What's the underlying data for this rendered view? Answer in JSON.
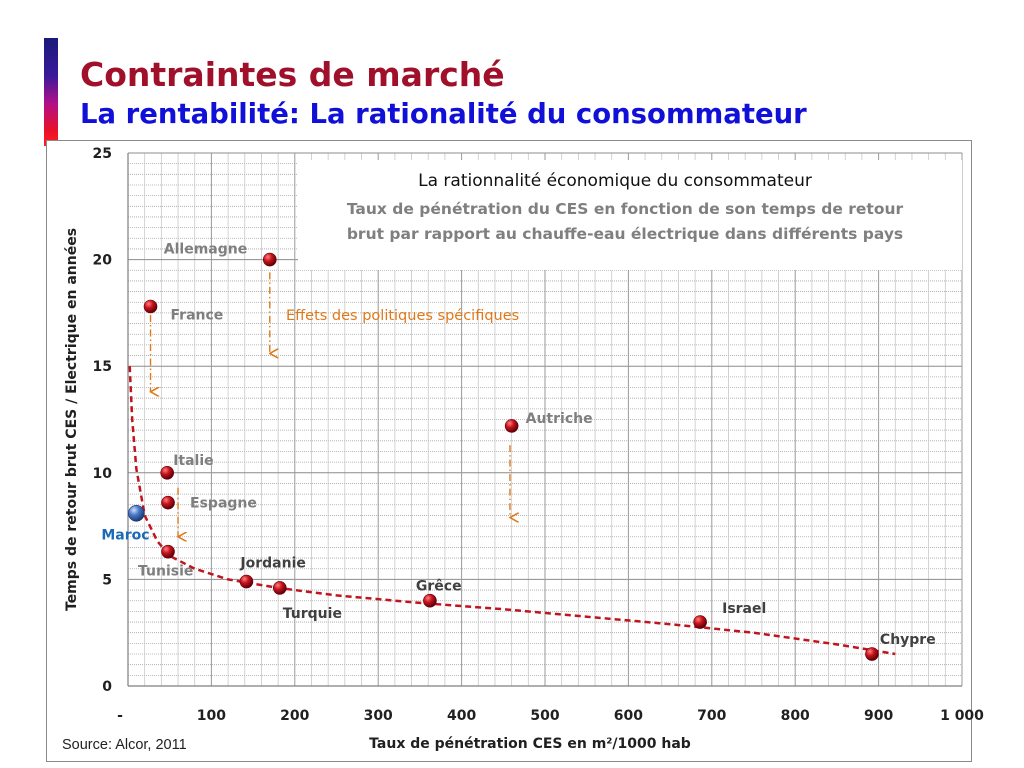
{
  "slide": {
    "title": "Contraintes de marché",
    "subtitle": "La rentabilité: La rationalité du consommateur",
    "source": "Source: Alcor, 2011"
  },
  "chart_data": {
    "type": "scatter",
    "title": "La rationnalité économique du consommateur",
    "subtitle_lines": [
      "Taux de pénétration  du CES en fonction de son temps de retour",
      "brut par rapport au chauffe-eau électrique dans différents pays"
    ],
    "xlabel": "Taux de pénétration CES en m²/1000 hab",
    "ylabel": "Temps de retour brut CES / Electrique en années",
    "xlim": [
      0,
      1000
    ],
    "ylim": [
      0,
      25
    ],
    "x_ticks": [
      0,
      100,
      200,
      300,
      400,
      500,
      600,
      700,
      800,
      900,
      1000
    ],
    "x_tick_labels": [
      "-",
      "100",
      "200",
      "300",
      "400",
      "500",
      "600",
      "700",
      "800",
      "900",
      "1 000"
    ],
    "y_ticks": [
      0,
      5,
      10,
      15,
      20,
      25
    ],
    "y_tick_labels": [
      "0",
      "5",
      "10",
      "15",
      "20",
      "25"
    ],
    "grid": true,
    "points": [
      {
        "label": "Allemagne",
        "x": 170,
        "y": 20.0
      },
      {
        "label": "France",
        "x": 27,
        "y": 17.8
      },
      {
        "label": "Autriche",
        "x": 460,
        "y": 12.2
      },
      {
        "label": "Italie",
        "x": 47,
        "y": 10.0
      },
      {
        "label": "Espagne",
        "x": 48,
        "y": 8.6
      },
      {
        "label": "Maroc",
        "x": 10,
        "y": 8.1,
        "highlight": true
      },
      {
        "label": "Tunisie",
        "x": 48,
        "y": 6.3
      },
      {
        "label": "Jordanie",
        "x": 142,
        "y": 4.9
      },
      {
        "label": "Turquie",
        "x": 182,
        "y": 4.6
      },
      {
        "label": "Grêce",
        "x": 362,
        "y": 4.0
      },
      {
        "label": "Israel",
        "x": 686,
        "y": 3.0
      },
      {
        "label": "Chypre",
        "x": 892,
        "y": 1.5
      }
    ],
    "trend_line": {
      "style": "dashed",
      "color": "#c0141e",
      "points": [
        [
          2,
          15.0
        ],
        [
          5,
          12.5
        ],
        [
          10,
          10.2
        ],
        [
          20,
          8.0
        ],
        [
          35,
          6.8
        ],
        [
          50,
          6.1
        ],
        [
          80,
          5.5
        ],
        [
          120,
          5.0
        ],
        [
          180,
          4.6
        ],
        [
          250,
          4.25
        ],
        [
          350,
          3.9
        ],
        [
          450,
          3.6
        ],
        [
          550,
          3.25
        ],
        [
          650,
          2.9
        ],
        [
          750,
          2.5
        ],
        [
          850,
          1.95
        ],
        [
          920,
          1.5
        ]
      ]
    },
    "annotation": {
      "text": "Effets des politiques spécifiques",
      "color": "#e07818",
      "arrows": [
        {
          "x": 27,
          "y_from": 17.4,
          "y_to": 13.8
        },
        {
          "x": 170,
          "y_from": 19.4,
          "y_to": 15.6
        },
        {
          "x": 60,
          "y_from": 9.3,
          "y_to": 7.0
        },
        {
          "x": 458,
          "y_from": 11.3,
          "y_to": 7.9
        }
      ]
    },
    "colors": {
      "point": "#c8141e",
      "point_highlight": "#4a7ac8",
      "label": "#7f7f7f",
      "label_dark": "#404040",
      "label_highlight": "#1a6ab8",
      "grid": "#a6a6a6"
    }
  }
}
